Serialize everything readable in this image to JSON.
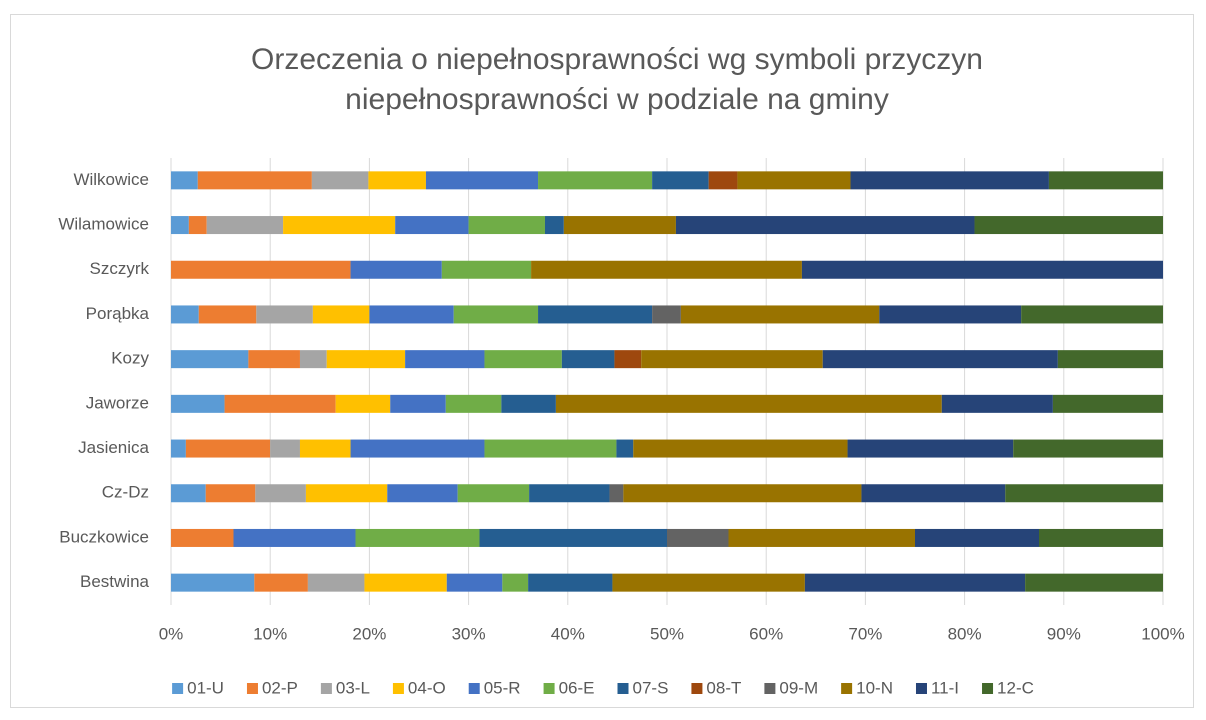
{
  "chart_data": {
    "type": "stacked-barh",
    "title": "Orzeczenia o niepełnosprawności wg symboli przyczyn niepełnosprawności w podziale na gminy",
    "categories": [
      "Bestwina",
      "Buczkowice",
      "Cz-Dz",
      "Jasienica",
      "Jaworze",
      "Kozy",
      "Porąbka",
      "Szczyrk",
      "Wilamowice",
      "Wilkowice"
    ],
    "series": [
      {
        "name": "01-U",
        "color": "#5b9bd5",
        "values": [
          8.4,
          0,
          3.5,
          1.5,
          5.4,
          7.8,
          2.8,
          0,
          1.8,
          2.7
        ]
      },
      {
        "name": "02-P",
        "color": "#ed7d31",
        "values": [
          5.4,
          6.3,
          5.0,
          8.5,
          11.2,
          5.2,
          5.8,
          18.1,
          1.8,
          11.5
        ]
      },
      {
        "name": "03-L",
        "color": "#a5a5a5",
        "values": [
          5.7,
          0,
          5.1,
          3.0,
          0,
          2.7,
          5.7,
          0,
          7.7,
          5.7
        ]
      },
      {
        "name": "04-O",
        "color": "#ffc000",
        "values": [
          8.3,
          0,
          8.2,
          5.1,
          5.5,
          7.9,
          5.7,
          0,
          11.3,
          5.8
        ]
      },
      {
        "name": "05-R",
        "color": "#4472c4",
        "values": [
          5.6,
          12.3,
          7.1,
          13.5,
          5.6,
          8.0,
          8.5,
          9.2,
          7.4,
          11.3
        ]
      },
      {
        "name": "06-E",
        "color": "#70ad47",
        "values": [
          2.6,
          12.5,
          7.2,
          13.3,
          5.6,
          7.8,
          8.5,
          9.0,
          7.7,
          11.5
        ]
      },
      {
        "name": "07-S",
        "color": "#255e91",
        "values": [
          8.5,
          18.9,
          8.1,
          1.7,
          5.5,
          5.3,
          11.5,
          0,
          1.9,
          5.7
        ]
      },
      {
        "name": "08-T",
        "color": "#9e480e",
        "values": [
          0,
          0,
          0,
          0,
          0,
          2.7,
          0,
          0,
          0,
          2.9
        ]
      },
      {
        "name": "09-M",
        "color": "#636363",
        "values": [
          0,
          6.2,
          1.4,
          0,
          0,
          0,
          2.9,
          0,
          0,
          0
        ]
      },
      {
        "name": "10-N",
        "color": "#997300",
        "values": [
          19.4,
          18.8,
          24.0,
          21.6,
          38.9,
          18.3,
          20.0,
          27.3,
          11.3,
          11.4
        ]
      },
      {
        "name": "11-I",
        "color": "#264478",
        "values": [
          22.2,
          12.5,
          14.5,
          16.7,
          11.2,
          23.7,
          14.3,
          36.4,
          30.1,
          20.0
        ]
      },
      {
        "name": "12-C",
        "color": "#43682b",
        "values": [
          13.9,
          12.5,
          15.9,
          15.1,
          11.1,
          10.6,
          14.3,
          0,
          19.0,
          11.5
        ]
      }
    ],
    "xlim": [
      0,
      100
    ],
    "xticks": [
      {
        "value": 0,
        "label": "0%"
      },
      {
        "value": 10,
        "label": "10%"
      },
      {
        "value": 20,
        "label": "20%"
      },
      {
        "value": 30,
        "label": "30%"
      },
      {
        "value": 40,
        "label": "40%"
      },
      {
        "value": 50,
        "label": "50%"
      },
      {
        "value": 60,
        "label": "60%"
      },
      {
        "value": 70,
        "label": "70%"
      },
      {
        "value": 80,
        "label": "80%"
      },
      {
        "value": 90,
        "label": "90%"
      },
      {
        "value": 100,
        "label": "100%"
      }
    ],
    "grid": true,
    "legend": "bottom"
  }
}
